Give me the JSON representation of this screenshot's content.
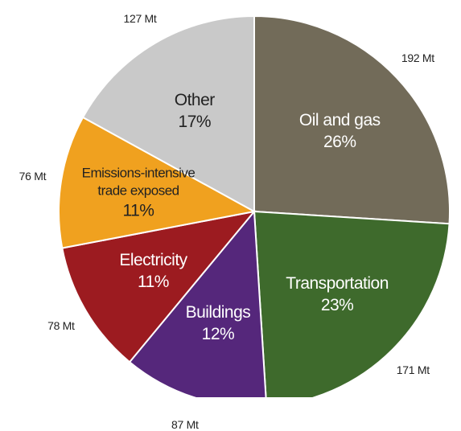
{
  "chart_data": {
    "type": "pie",
    "categories": [
      "Oil and gas",
      "Transportation",
      "Buildings",
      "Electricity",
      "Emissions-intensive trade exposed",
      "Other"
    ],
    "values": [
      26,
      23,
      12,
      11,
      11,
      17
    ],
    "value_labels": [
      "26%",
      "23%",
      "12%",
      "11%",
      "11%",
      "17%"
    ],
    "amounts": [
      192,
      171,
      87,
      78,
      76,
      127
    ],
    "amount_labels": [
      "192 Mt",
      "171 Mt",
      "87 Mt",
      "78 Mt",
      "76 Mt",
      "127 Mt"
    ],
    "colors": [
      "#726b59",
      "#3e6a2c",
      "#55277b",
      "#9c1b20",
      "#f0a11f",
      "#c9c9c9"
    ]
  }
}
